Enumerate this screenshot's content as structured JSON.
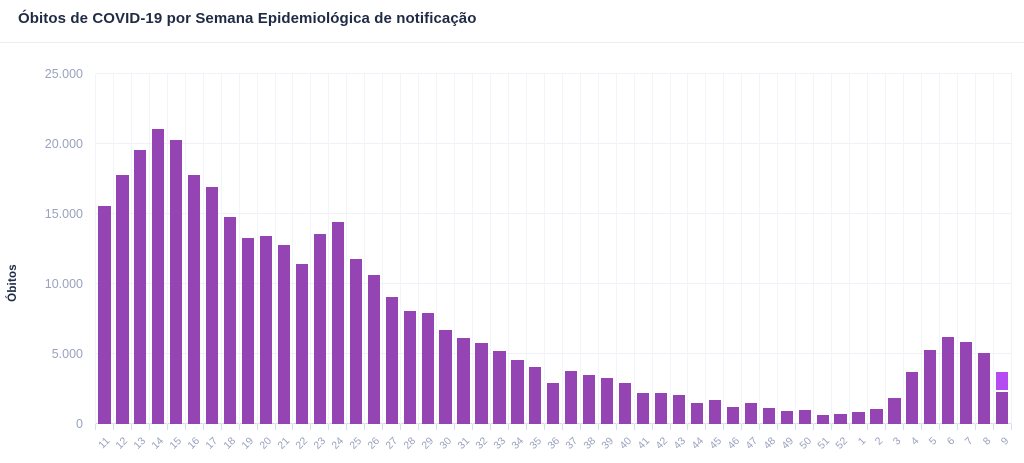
{
  "chart_data": {
    "type": "bar",
    "title": "Óbitos de COVID-19 por Semana Epidemiológica de notificação",
    "ylabel": "Óbitos",
    "xlabel": "",
    "ylim": [
      0,
      25000
    ],
    "grid": true,
    "legend": false,
    "yticks": [
      {
        "value": 0,
        "label": "0"
      },
      {
        "value": 5000,
        "label": "5.000"
      },
      {
        "value": 10000,
        "label": "10.000"
      },
      {
        "value": 15000,
        "label": "15.000"
      },
      {
        "value": 20000,
        "label": "20.000"
      },
      {
        "value": 25000,
        "label": "25.000"
      }
    ],
    "colors": {
      "bar": "#9544b4",
      "partial_bar": "#b44cf2",
      "title_text": "#1f2a45",
      "tick_label": "#99a2be",
      "gridline": "#eef2f8",
      "axis_line": "#d5dae4"
    },
    "bars": [
      {
        "label": "11",
        "value": 15600
      },
      {
        "label": "12",
        "value": 17800
      },
      {
        "label": "13",
        "value": 19600
      },
      {
        "label": "14",
        "value": 21100
      },
      {
        "label": "15",
        "value": 20300
      },
      {
        "label": "16",
        "value": 17800
      },
      {
        "label": "17",
        "value": 16900
      },
      {
        "label": "18",
        "value": 14800
      },
      {
        "label": "19",
        "value": 13300
      },
      {
        "label": "20",
        "value": 13400
      },
      {
        "label": "21",
        "value": 12800
      },
      {
        "label": "22",
        "value": 11400
      },
      {
        "label": "23",
        "value": 13600
      },
      {
        "label": "24",
        "value": 14400
      },
      {
        "label": "25",
        "value": 11800
      },
      {
        "label": "26",
        "value": 10650
      },
      {
        "label": "27",
        "value": 9100
      },
      {
        "label": "28",
        "value": 8100
      },
      {
        "label": "29",
        "value": 7950
      },
      {
        "label": "30",
        "value": 6700
      },
      {
        "label": "31",
        "value": 6150
      },
      {
        "label": "32",
        "value": 5800
      },
      {
        "label": "33",
        "value": 5200
      },
      {
        "label": "34",
        "value": 4550
      },
      {
        "label": "35",
        "value": 4100
      },
      {
        "label": "36",
        "value": 2950
      },
      {
        "label": "37",
        "value": 3800
      },
      {
        "label": "38",
        "value": 3500
      },
      {
        "label": "39",
        "value": 3300
      },
      {
        "label": "40",
        "value": 2900
      },
      {
        "label": "41",
        "value": 2200
      },
      {
        "label": "42",
        "value": 2200
      },
      {
        "label": "43",
        "value": 2100
      },
      {
        "label": "44",
        "value": 1500
      },
      {
        "label": "45",
        "value": 1700
      },
      {
        "label": "46",
        "value": 1200
      },
      {
        "label": "47",
        "value": 1470
      },
      {
        "label": "48",
        "value": 1150
      },
      {
        "label": "49",
        "value": 950
      },
      {
        "label": "50",
        "value": 1000
      },
      {
        "label": "51",
        "value": 670
      },
      {
        "label": "52",
        "value": 690
      },
      {
        "label": "1",
        "value": 860
      },
      {
        "label": "2",
        "value": 1050
      },
      {
        "label": "3",
        "value": 1850
      },
      {
        "label": "4",
        "value": 3700
      },
      {
        "label": "5",
        "value": 5300
      },
      {
        "label": "6",
        "value": 6250
      },
      {
        "label": "7",
        "value": 5850
      },
      {
        "label": "8",
        "value": 5050
      },
      {
        "label": "9",
        "value": 2300,
        "partial_value": 1250
      }
    ]
  }
}
